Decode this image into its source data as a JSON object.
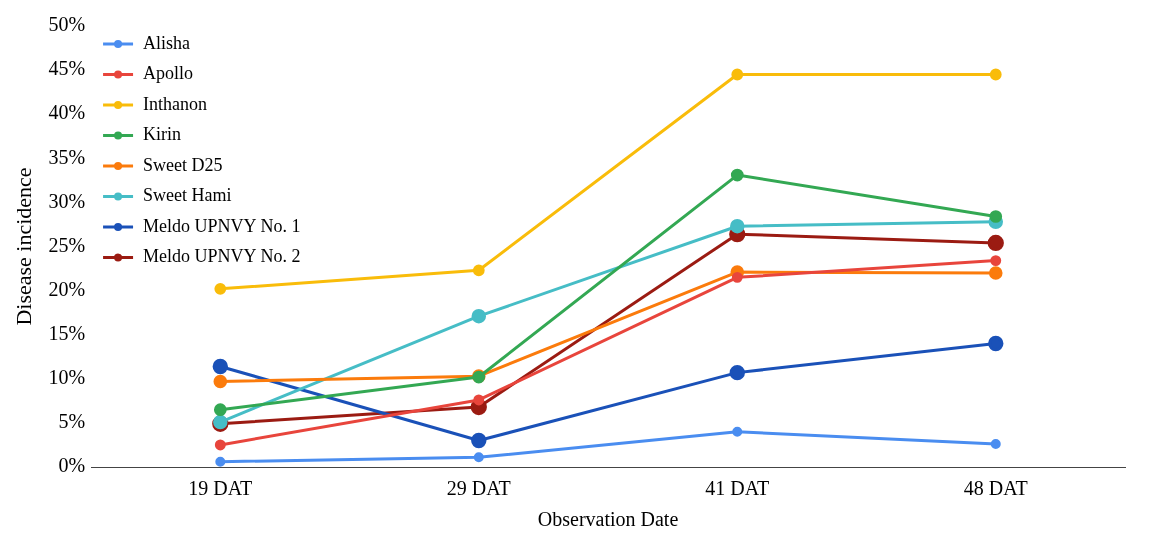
{
  "chart_data": {
    "type": "line",
    "xlabel": "Observation Date",
    "ylabel": "Disease incidence",
    "categories": [
      "19 DAT",
      "29 DAT",
      "41 DAT",
      "48 DAT"
    ],
    "ylim": [
      0,
      50
    ],
    "yticks": [
      {
        "value": 0,
        "label": "0%"
      },
      {
        "value": 5,
        "label": "5%"
      },
      {
        "value": 10,
        "label": "10%"
      },
      {
        "value": 15,
        "label": "15%"
      },
      {
        "value": 20,
        "label": "20%"
      },
      {
        "value": 25,
        "label": "25%"
      },
      {
        "value": 30,
        "label": "30%"
      },
      {
        "value": 35,
        "label": "35%"
      },
      {
        "value": 40,
        "label": "40%"
      },
      {
        "value": 45,
        "label": "45%"
      },
      {
        "value": 50,
        "label": "50%"
      }
    ],
    "grid": false,
    "legend": "top left",
    "marker": "circle",
    "line_style": "solid",
    "series": [
      {
        "name": "Alisha",
        "color": "#4a8df0",
        "values": [
          0.6,
          1.1,
          4.0,
          2.6
        ]
      },
      {
        "name": "Apollo",
        "color": "#e8453c",
        "values": [
          2.5,
          7.6,
          21.5,
          23.4
        ]
      },
      {
        "name": "Inthanon",
        "color": "#f9bc0a",
        "values": [
          20.2,
          22.3,
          44.5,
          44.5
        ]
      },
      {
        "name": "Kirin",
        "color": "#33a853",
        "values": [
          6.5,
          10.2,
          33.1,
          28.4
        ]
      },
      {
        "name": "Sweet D25",
        "color": "#fb7b0c",
        "values": [
          9.7,
          10.3,
          22.1,
          22.0
        ]
      },
      {
        "name": "Sweet Hami",
        "color": "#46bdc6",
        "values": [
          5.1,
          17.1,
          27.3,
          27.8
        ]
      },
      {
        "name": "Meldo UPNVY No. 1",
        "color": "#1a51b8",
        "values": [
          11.4,
          3.0,
          10.7,
          14.0
        ]
      },
      {
        "name": "Meldo UPNVY No. 2",
        "color": "#9b1b12",
        "values": [
          4.9,
          6.8,
          26.4,
          25.4
        ]
      }
    ]
  }
}
